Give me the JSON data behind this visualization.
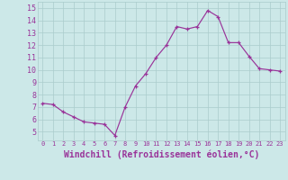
{
  "x": [
    0,
    1,
    2,
    3,
    4,
    5,
    6,
    7,
    8,
    9,
    10,
    11,
    12,
    13,
    14,
    15,
    16,
    17,
    18,
    19,
    20,
    21,
    22,
    23
  ],
  "y": [
    7.3,
    7.2,
    6.6,
    6.2,
    5.8,
    5.7,
    5.6,
    4.7,
    7.0,
    8.7,
    9.7,
    11.0,
    12.0,
    13.5,
    13.3,
    13.5,
    14.8,
    14.3,
    12.2,
    12.2,
    11.1,
    10.1,
    10.0,
    9.9
  ],
  "line_color": "#993399",
  "marker": "+",
  "xlabel": "Windchill (Refroidissement éolien,°C)",
  "ylabel_ticks": [
    5,
    6,
    7,
    8,
    9,
    10,
    11,
    12,
    13,
    14,
    15
  ],
  "xlim": [
    -0.5,
    23.5
  ],
  "ylim": [
    4.3,
    15.5
  ],
  "bg_color": "#cce8e8",
  "grid_color": "#aacccc",
  "line_color2": "#993399",
  "tick_color": "#993399",
  "xlabel_fontsize": 7,
  "tick_fontsize_x": 5,
  "tick_fontsize_y": 6
}
